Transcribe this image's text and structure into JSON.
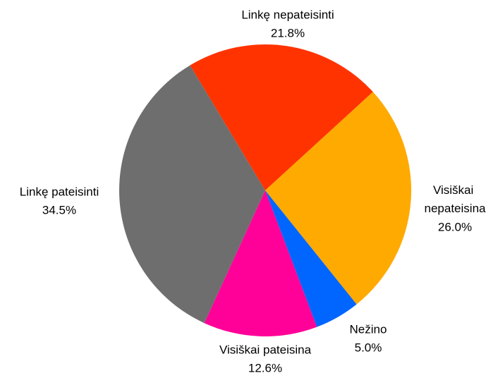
{
  "chart_data": {
    "type": "pie",
    "categories": [
      "Linkę nepateisinti",
      "Visiškai nepateisina",
      "Nežino",
      "Visiškai pateisina",
      "Linkę pateisinti"
    ],
    "values": [
      21.8,
      26.0,
      5.0,
      12.6,
      34.5
    ],
    "value_labels": [
      "21.8%",
      "26.0%",
      "5.0%",
      "12.6%",
      "34.5%"
    ],
    "colors": [
      "#ff3300",
      "#ffaa00",
      "#0066ff",
      "#ff0099",
      "#6e6e6e"
    ]
  }
}
